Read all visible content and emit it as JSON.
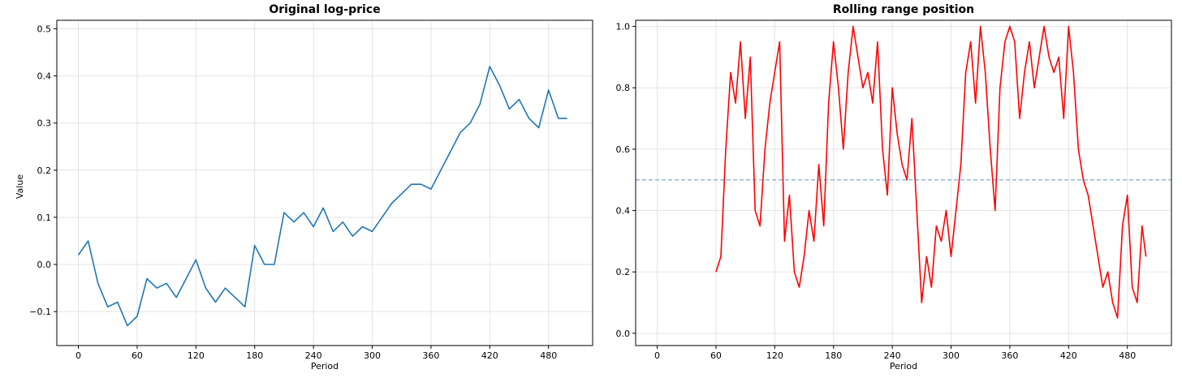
{
  "chart_data": [
    {
      "type": "line",
      "title": "Original log-price",
      "xlabel": "Period",
      "ylabel": "Value",
      "xlim": [
        -22,
        525
      ],
      "ylim": [
        -0.172,
        0.518
      ],
      "xticks": [
        0,
        60,
        120,
        180,
        240,
        300,
        360,
        420,
        480
      ],
      "yticks": [
        -0.1,
        0.0,
        0.1,
        0.2,
        0.3,
        0.4,
        0.5
      ],
      "ytick_labels": [
        "−0.1",
        "0.0",
        "0.1",
        "0.2",
        "0.3",
        "0.4",
        "0.5"
      ],
      "grid": true,
      "series": [
        {
          "color": "#1f77b4",
          "x": [
            0,
            10,
            20,
            30,
            40,
            50,
            60,
            70,
            80,
            90,
            100,
            110,
            120,
            130,
            140,
            150,
            160,
            170,
            180,
            190,
            200,
            210,
            220,
            230,
            240,
            250,
            260,
            270,
            280,
            290,
            300,
            310,
            320,
            330,
            340,
            350,
            360,
            370,
            380,
            390,
            400,
            410,
            420,
            430,
            440,
            450,
            460,
            470,
            480,
            490,
            499
          ],
          "y": [
            0.02,
            0.05,
            -0.04,
            -0.09,
            -0.08,
            -0.13,
            -0.11,
            -0.03,
            -0.05,
            -0.04,
            -0.07,
            -0.03,
            0.01,
            -0.05,
            -0.08,
            -0.05,
            -0.07,
            -0.09,
            0.04,
            0.0,
            0.0,
            0.11,
            0.09,
            0.11,
            0.08,
            0.12,
            0.07,
            0.09,
            0.06,
            0.08,
            0.07,
            0.1,
            0.13,
            0.15,
            0.17,
            0.17,
            0.16,
            0.2,
            0.24,
            0.28,
            0.3,
            0.34,
            0.42,
            0.38,
            0.33,
            0.35,
            0.31,
            0.29,
            0.37,
            0.31,
            0.31
          ]
        }
      ]
    },
    {
      "type": "line",
      "title": "Rolling range position",
      "xlabel": "Period",
      "ylabel": "",
      "xlim": [
        -22,
        525
      ],
      "ylim": [
        -0.04,
        1.02
      ],
      "xticks": [
        0,
        60,
        120,
        180,
        240,
        300,
        360,
        420,
        480
      ],
      "yticks": [
        0.0,
        0.2,
        0.4,
        0.6,
        0.8,
        1.0
      ],
      "ytick_labels": [
        "0.0",
        "0.2",
        "0.4",
        "0.6",
        "0.8",
        "1.0"
      ],
      "grid": true,
      "reference_line": {
        "y": 0.5,
        "color": "#1f77b4",
        "style": "dashed"
      },
      "series": [
        {
          "color": "#ff0000",
          "x": [
            60,
            65,
            70,
            75,
            80,
            85,
            90,
            95,
            100,
            105,
            110,
            115,
            120,
            125,
            130,
            135,
            140,
            145,
            150,
            155,
            160,
            165,
            170,
            175,
            180,
            185,
            190,
            195,
            200,
            205,
            210,
            215,
            220,
            225,
            230,
            235,
            240,
            245,
            250,
            255,
            260,
            265,
            270,
            275,
            280,
            285,
            290,
            295,
            300,
            305,
            310,
            315,
            320,
            325,
            330,
            335,
            340,
            345,
            350,
            355,
            360,
            365,
            370,
            375,
            380,
            385,
            390,
            395,
            400,
            405,
            410,
            415,
            420,
            425,
            430,
            435,
            440,
            445,
            450,
            455,
            460,
            465,
            470,
            475,
            480,
            485,
            490,
            495,
            499
          ],
          "y": [
            0.2,
            0.25,
            0.6,
            0.85,
            0.75,
            0.95,
            0.7,
            0.9,
            0.4,
            0.35,
            0.6,
            0.75,
            0.85,
            0.95,
            0.3,
            0.45,
            0.2,
            0.15,
            0.25,
            0.4,
            0.3,
            0.55,
            0.35,
            0.75,
            0.95,
            0.8,
            0.6,
            0.85,
            1.0,
            0.9,
            0.8,
            0.85,
            0.75,
            0.95,
            0.6,
            0.45,
            0.8,
            0.65,
            0.55,
            0.5,
            0.7,
            0.4,
            0.1,
            0.25,
            0.15,
            0.35,
            0.3,
            0.4,
            0.25,
            0.4,
            0.55,
            0.85,
            0.95,
            0.75,
            1.0,
            0.85,
            0.6,
            0.4,
            0.8,
            0.95,
            1.0,
            0.95,
            0.7,
            0.85,
            0.95,
            0.8,
            0.9,
            1.0,
            0.9,
            0.85,
            0.9,
            0.7,
            1.0,
            0.85,
            0.6,
            0.5,
            0.45,
            0.35,
            0.25,
            0.15,
            0.2,
            0.1,
            0.05,
            0.35,
            0.45,
            0.15,
            0.1,
            0.35,
            0.25
          ]
        }
      ]
    }
  ]
}
